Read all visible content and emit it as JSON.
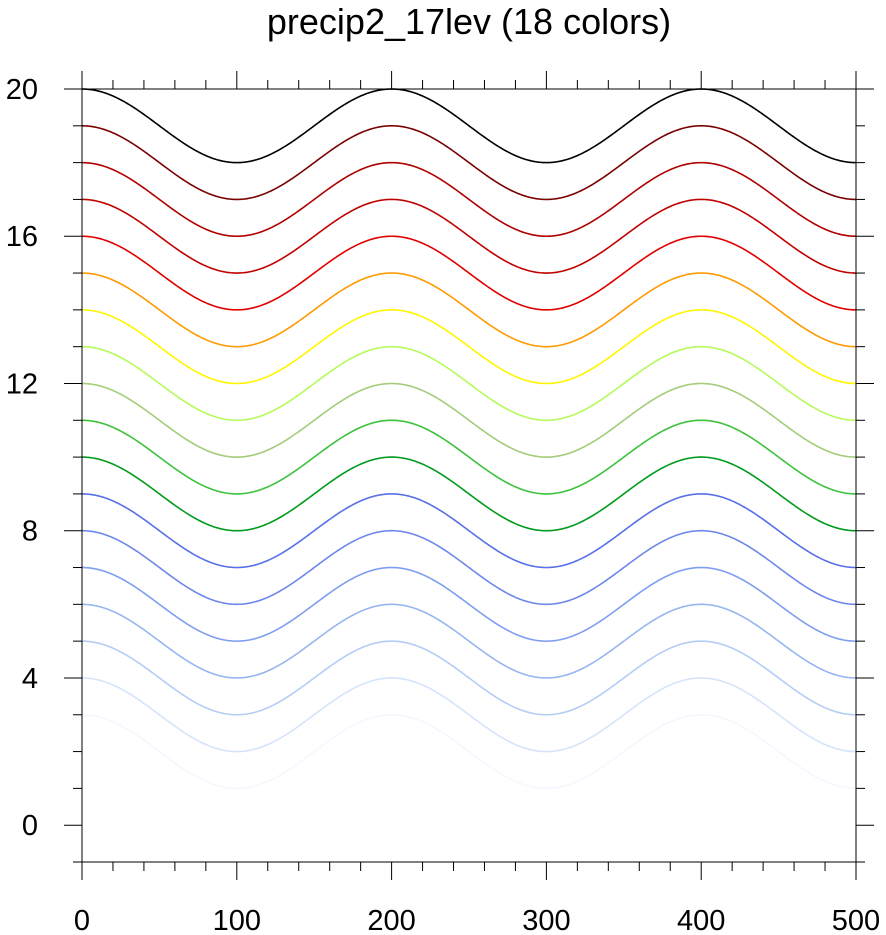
{
  "chart_data": {
    "type": "line",
    "title": "precip2_17lev (18 colors)",
    "xlabel": "",
    "ylabel": "",
    "xlim": [
      0,
      500
    ],
    "ylim": [
      -1,
      20
    ],
    "x_ticks": [
      0,
      100,
      200,
      300,
      400,
      500
    ],
    "y_ticks": [
      0,
      4,
      8,
      12,
      16,
      20
    ],
    "x_tick_labels": [
      "0",
      "100",
      "200",
      "300",
      "400",
      "500"
    ],
    "y_tick_labels": [
      "0",
      "4",
      "8",
      "12",
      "16",
      "20"
    ],
    "grid": false,
    "legend": "none",
    "series_shape": "sinusoid, amplitude 1, period 200, peaks at x = 50, 250, 450; y(0) = 1 below the peak level",
    "series": [
      {
        "color": "#f3f8ff",
        "peak": 3
      },
      {
        "color": "#d5e4fa",
        "peak": 4
      },
      {
        "color": "#b4cdf5",
        "peak": 5
      },
      {
        "color": "#96b6f0",
        "peak": 6
      },
      {
        "color": "#7e9ff0",
        "peak": 7
      },
      {
        "color": "#6c88eb",
        "peak": 8
      },
      {
        "color": "#5870e8",
        "peak": 9
      },
      {
        "color": "#009a1d",
        "peak": 10
      },
      {
        "color": "#3cc23d",
        "peak": 11
      },
      {
        "color": "#a5cc7a",
        "peak": 12
      },
      {
        "color": "#b4fb5a",
        "peak": 13
      },
      {
        "color": "#fff500",
        "peak": 14
      },
      {
        "color": "#ff9a00",
        "peak": 15
      },
      {
        "color": "#e10000",
        "peak": 16
      },
      {
        "color": "#c00000",
        "peak": 17
      },
      {
        "color": "#b00000",
        "peak": 18
      },
      {
        "color": "#7a0000",
        "peak": 19
      },
      {
        "color": "#000000",
        "peak": 20
      }
    ]
  }
}
